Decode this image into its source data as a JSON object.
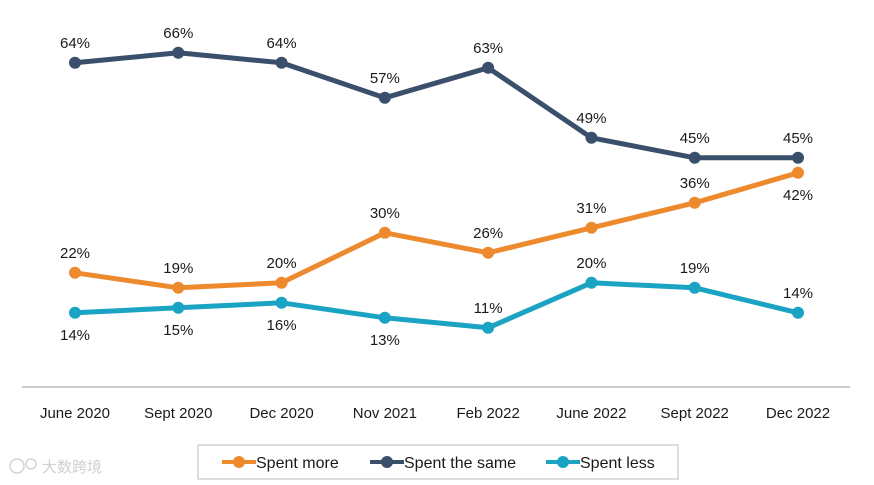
{
  "chart_data": {
    "type": "line",
    "categories": [
      "June 2020",
      "Sept 2020",
      "Dec 2020",
      "Nov 2021",
      "Feb 2022",
      "June 2022",
      "Sept 2022",
      "Dec 2022"
    ],
    "series": [
      {
        "name": "Spent the same",
        "color": "#3a4f6b",
        "values": [
          64,
          66,
          64,
          57,
          63,
          49,
          45,
          45
        ],
        "labels": [
          "64%",
          "66%",
          "64%",
          "57%",
          "63%",
          "49%",
          "45%",
          "45%"
        ],
        "label_pos": [
          "above",
          "above",
          "above",
          "above",
          "above",
          "above",
          "above",
          "above"
        ]
      },
      {
        "name": "Spent more",
        "color": "#ee8a2e",
        "values": [
          22,
          19,
          20,
          30,
          26,
          31,
          36,
          42
        ],
        "labels": [
          "22%",
          "19%",
          "20%",
          "30%",
          "26%",
          "31%",
          "36%",
          "42%"
        ],
        "label_pos": [
          "above",
          "above",
          "above",
          "above",
          "above",
          "above",
          "above",
          "below"
        ]
      },
      {
        "name": "Spent less",
        "color": "#1aa3c2",
        "values": [
          14,
          15,
          16,
          13,
          11,
          20,
          19,
          14
        ],
        "labels": [
          "14%",
          "15%",
          "16%",
          "13%",
          "11%",
          "20%",
          "19%",
          "14%"
        ],
        "label_pos": [
          "below",
          "below",
          "below",
          "below",
          "above",
          "above",
          "above",
          "above"
        ]
      }
    ],
    "legend_order": [
      "Spent more",
      "Spent the same",
      "Spent less"
    ],
    "ylim": [
      0,
      70
    ],
    "title": "",
    "xlabel": "",
    "ylabel": "",
    "grid": false,
    "legend_position": "bottom-center"
  },
  "watermark": {
    "text": "大数跨境"
  }
}
